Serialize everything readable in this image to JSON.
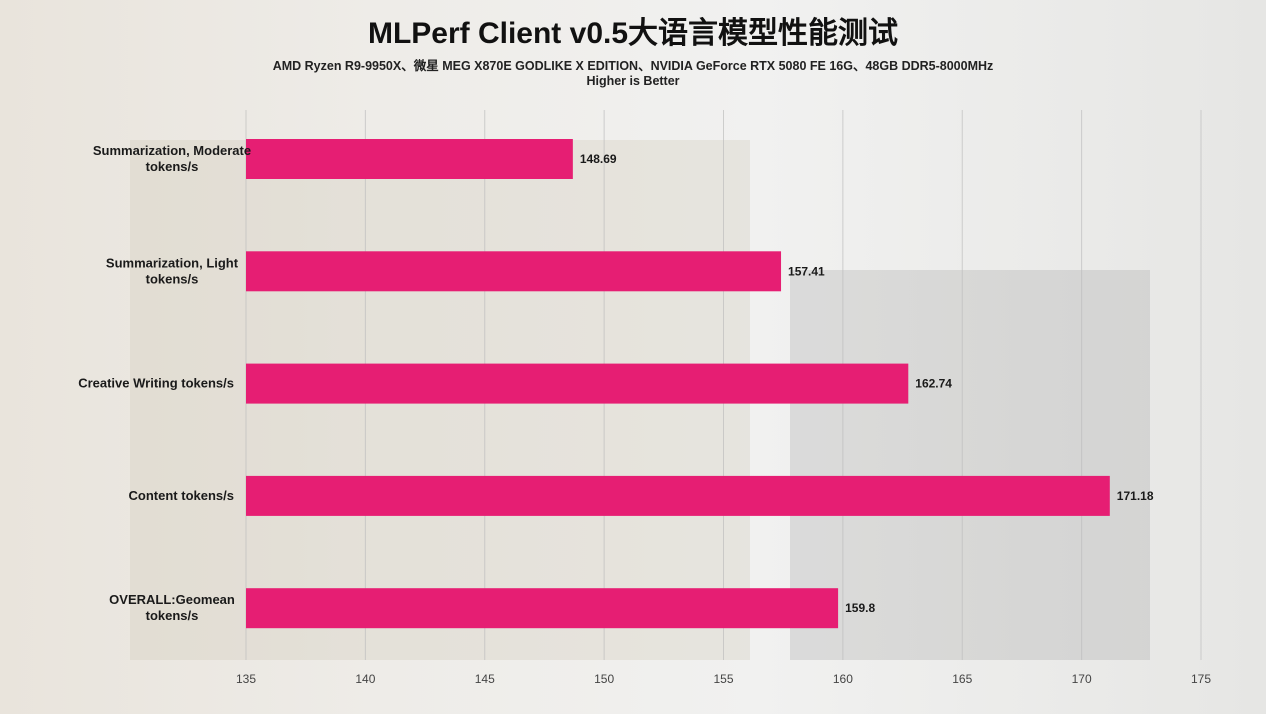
{
  "chart_data": {
    "type": "bar",
    "orientation": "horizontal",
    "title": "MLPerf Client v0.5大语言模型性能测试",
    "subtitle": "AMD Ryzen R9-9950X、微星 MEG X870E GODLIKE X EDITION、NVIDIA GeForce RTX 5080 FE 16G、48GB DDR5-8000MHz",
    "note": "Higher is Better",
    "categories": [
      [
        "Summarization, Moderate",
        "tokens/s"
      ],
      [
        "Summarization, Light",
        "tokens/s"
      ],
      [
        "Creative Writing tokens/s"
      ],
      [
        "Content tokens/s"
      ],
      [
        "OVERALL:Geomean",
        "tokens/s"
      ]
    ],
    "values": [
      148.69,
      157.41,
      162.74,
      171.18,
      159.8
    ],
    "value_labels": [
      "148.69",
      "157.41",
      "162.74",
      "171.18",
      "159.8"
    ],
    "xlim": [
      135,
      175
    ],
    "xticks": [
      "135",
      "140",
      "145",
      "150",
      "155",
      "160",
      "165",
      "170",
      "175"
    ],
    "grid": true,
    "bar_color": "#E61E73"
  }
}
